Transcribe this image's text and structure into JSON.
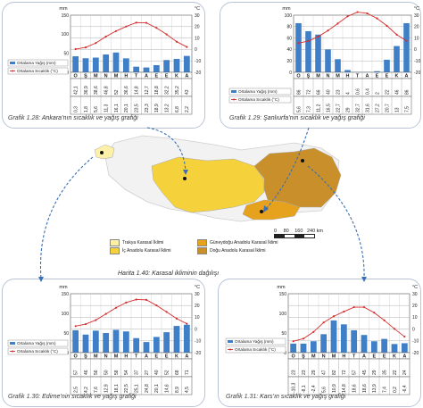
{
  "months": [
    "O",
    "Ş",
    "M",
    "N",
    "M",
    "H",
    "T",
    "A",
    "E",
    "E",
    "K",
    "A"
  ],
  "units": {
    "left": "mm",
    "right": "°C"
  },
  "legend": {
    "rain": "Ortalama Yağış (mm)",
    "temp": "Ortalama Sıcaklık (°C)"
  },
  "colors": {
    "bar": "#3f7fc7",
    "line": "#d62d2d",
    "trakya": "#fdf0a8",
    "ic": "#f5d23c",
    "guneydogu": "#e6a21c",
    "dogu": "#c98f2a"
  },
  "chart_data": [
    {
      "type": "bar",
      "title": "Ankara",
      "caption_label": "Grafik 1.28:",
      "caption_text": "Ankara’nın sıcaklık ve yağış grafiği",
      "categories": [
        "O",
        "Ş",
        "M",
        "N",
        "M",
        "H",
        "T",
        "A",
        "E",
        "E",
        "K",
        "A"
      ],
      "y_left_ticks": [
        "150",
        "100",
        "50",
        "0"
      ],
      "y_right_ticks": [
        "30",
        "20",
        "10",
        "0",
        "-10",
        "-20"
      ],
      "series": [
        {
          "name": "Ortalama Yağış (mm)",
          "values": [
            42.1,
            36.9,
            38.6,
            46.8,
            52,
            36.6,
            14.8,
            12.7,
            18.8,
            32.2,
            35.2,
            43
          ]
        },
        {
          "name": "Ortalama Sıcaklık (°C)",
          "values": [
            0.3,
            1.8,
            5.6,
            11.3,
            16.1,
            20.1,
            23.5,
            23.3,
            18.9,
            13.2,
            6.8,
            2.2
          ]
        }
      ],
      "rain_labels": [
        "42,1",
        "36,9",
        "38,6",
        "46,8",
        "52",
        "36,6",
        "14,8",
        "12,7",
        "18,8",
        "32,2",
        "35,2",
        "43"
      ],
      "temp_labels": [
        "0,3",
        "1,8",
        "5,6",
        "11,3",
        "16,1",
        "20,1",
        "23,5",
        "23,3",
        "18,9",
        "13,2",
        "6,8",
        "2,2"
      ]
    },
    {
      "type": "bar",
      "title": "Şanlıurfa",
      "caption_label": "Grafik 1.29:",
      "caption_text": "Şanlıurfa’nın sıcaklık ve yağış grafiği",
      "categories": [
        "O",
        "Ş",
        "M",
        "N",
        "M",
        "H",
        "T",
        "A",
        "E",
        "E",
        "K",
        "A"
      ],
      "y_left_ticks": [
        "100",
        "80",
        "60",
        "40",
        "20",
        "0"
      ],
      "y_right_ticks": [
        "30",
        "20",
        "10",
        "0",
        "-10",
        "-20"
      ],
      "series": [
        {
          "name": "Ortalama Yağış (mm)",
          "values": [
            86,
            72,
            66,
            40,
            23,
            4,
            0.6,
            0.4,
            2,
            22,
            46,
            86
          ]
        },
        {
          "name": "Ortalama Sıcaklık (°C)",
          "values": [
            5.6,
            7.3,
            11.2,
            16.5,
            22.7,
            29,
            32.7,
            31.6,
            27.2,
            20.7,
            13,
            7.5
          ]
        }
      ],
      "rain_labels": [
        "86",
        "72",
        "66",
        "40",
        "23",
        "4",
        "0,6",
        "0,4",
        "2",
        "22",
        "46",
        "86"
      ],
      "temp_labels": [
        "5,6",
        "7,3",
        "11,2",
        "16,5",
        "22,7",
        "29",
        "32,7",
        "31,6",
        "27,2",
        "20,7",
        "13",
        "7,5"
      ]
    },
    {
      "type": "bar",
      "title": "Edirne",
      "caption_label": "Grafik 1.30:",
      "caption_text": "Edirne’nin sıcaklık ve yağış grafiği",
      "categories": [
        "O",
        "Ş",
        "M",
        "N",
        "M",
        "H",
        "T",
        "A",
        "E",
        "E",
        "K",
        "A"
      ],
      "y_left_ticks": [
        "150",
        "100",
        "50",
        "0"
      ],
      "y_right_ticks": [
        "30",
        "20",
        "10",
        "0",
        "-10",
        "-20"
      ],
      "series": [
        {
          "name": "Ortalama Yağış (mm)",
          "values": [
            57,
            46,
            56,
            50,
            58,
            54,
            37,
            27,
            40,
            52,
            68,
            71
          ]
        },
        {
          "name": "Ortalama Sıcaklık (°C)",
          "values": [
            2.5,
            4.2,
            7.6,
            12.9,
            18.1,
            22.5,
            25.1,
            24.8,
            20.1,
            14.6,
            8.9,
            4.5
          ]
        }
      ],
      "rain_labels": [
        "57",
        "46",
        "56",
        "50",
        "58",
        "54",
        "37",
        "27",
        "40",
        "52",
        "68",
        "71"
      ],
      "temp_labels": [
        "2,5",
        "4,2",
        "7,6",
        "12,9",
        "18,1",
        "22,5",
        "25,1",
        "24,8",
        "20,1",
        "14,6",
        "8,9",
        "4,5"
      ]
    },
    {
      "type": "bar",
      "title": "Kars",
      "caption_label": "Grafik 1.31:",
      "caption_text": "Kars’ın sıcaklık ve yağış grafiği",
      "categories": [
        "O",
        "Ş",
        "M",
        "N",
        "M",
        "H",
        "T",
        "A",
        "E",
        "E",
        "K",
        "A"
      ],
      "y_left_ticks": [
        "150",
        "100",
        "50",
        "0"
      ],
      "y_right_ticks": [
        "30",
        "20",
        "10",
        "0",
        "-10",
        "-20"
      ],
      "series": [
        {
          "name": "Ortalama Yağış (mm)",
          "values": [
            23,
            23,
            29,
            47,
            82,
            72,
            57,
            45,
            29,
            35,
            22,
            24
          ]
        },
        {
          "name": "Ortalama Sıcaklık (°C)",
          "values": [
            -10.3,
            -8.1,
            -2.4,
            5.6,
            10.9,
            14.8,
            18.6,
            18.6,
            13.9,
            7.4,
            0.2,
            -6.4
          ]
        }
      ],
      "rain_labels": [
        "23",
        "23",
        "29",
        "47",
        "82",
        "72",
        "57",
        "45",
        "29",
        "35",
        "22",
        "24"
      ],
      "temp_labels": [
        "-10,3",
        "-8,1",
        "-2,4",
        "5,6",
        "10,9",
        "14,8",
        "18,6",
        "18,6",
        "13,9",
        "7,4",
        "0,2",
        "-6,4"
      ]
    }
  ],
  "map": {
    "caption_label": "Harita 1.40:",
    "caption_text": "Karasal ikliminin dağılışı",
    "scale_labels": [
      "0",
      "80",
      "160",
      "240 km"
    ],
    "legend": [
      {
        "label": "Trakya Karasal İklimi",
        "color_key": "trakya"
      },
      {
        "label": "Güneydoğu Anadolu Karasal İklimi",
        "color_key": "guneydogu"
      },
      {
        "label": "İç Anadolu Karasal İklimi",
        "color_key": "ic"
      },
      {
        "label": "Doğu Anadolu Karasal İklimi",
        "color_key": "dogu"
      }
    ]
  }
}
